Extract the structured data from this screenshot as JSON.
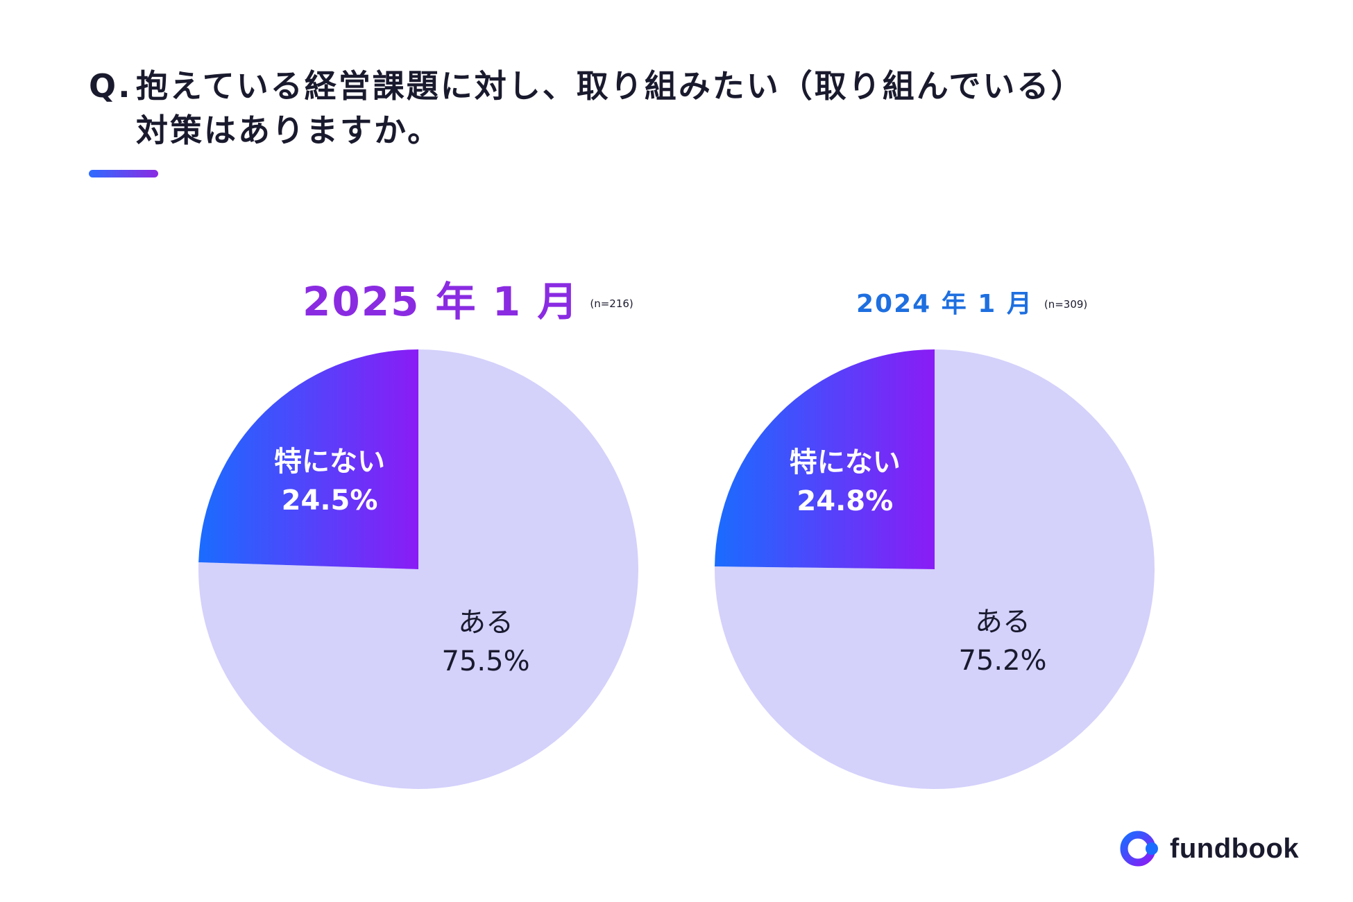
{
  "question": {
    "prefix": "Q.",
    "line1": "抱えている経営課題に対し、取り組みたい（取り組んでいる）",
    "line2": "対策はありますか。"
  },
  "colors": {
    "accent_purple": "#8a2be2",
    "accent_blue": "#1e6fe0",
    "gradient_start": "#1a6cff",
    "gradient_end": "#8a1cf6",
    "pie_light": "#d4d1fb"
  },
  "chart_data": [
    {
      "type": "pie",
      "title": "2025 年 1 月",
      "n_label": "(n=216)",
      "slices": [
        {
          "label": "ある",
          "value": 75.5,
          "value_label": "75.5%"
        },
        {
          "label": "特にない",
          "value": 24.5,
          "value_label": "24.5%"
        }
      ]
    },
    {
      "type": "pie",
      "title": "2024 年 1 月",
      "n_label": "(n=309)",
      "slices": [
        {
          "label": "ある",
          "value": 75.2,
          "value_label": "75.2%"
        },
        {
          "label": "特にない",
          "value": 24.8,
          "value_label": "24.8%"
        }
      ]
    }
  ],
  "logo": {
    "text": "fundbook",
    "icon": "fundbook-logo-icon"
  }
}
